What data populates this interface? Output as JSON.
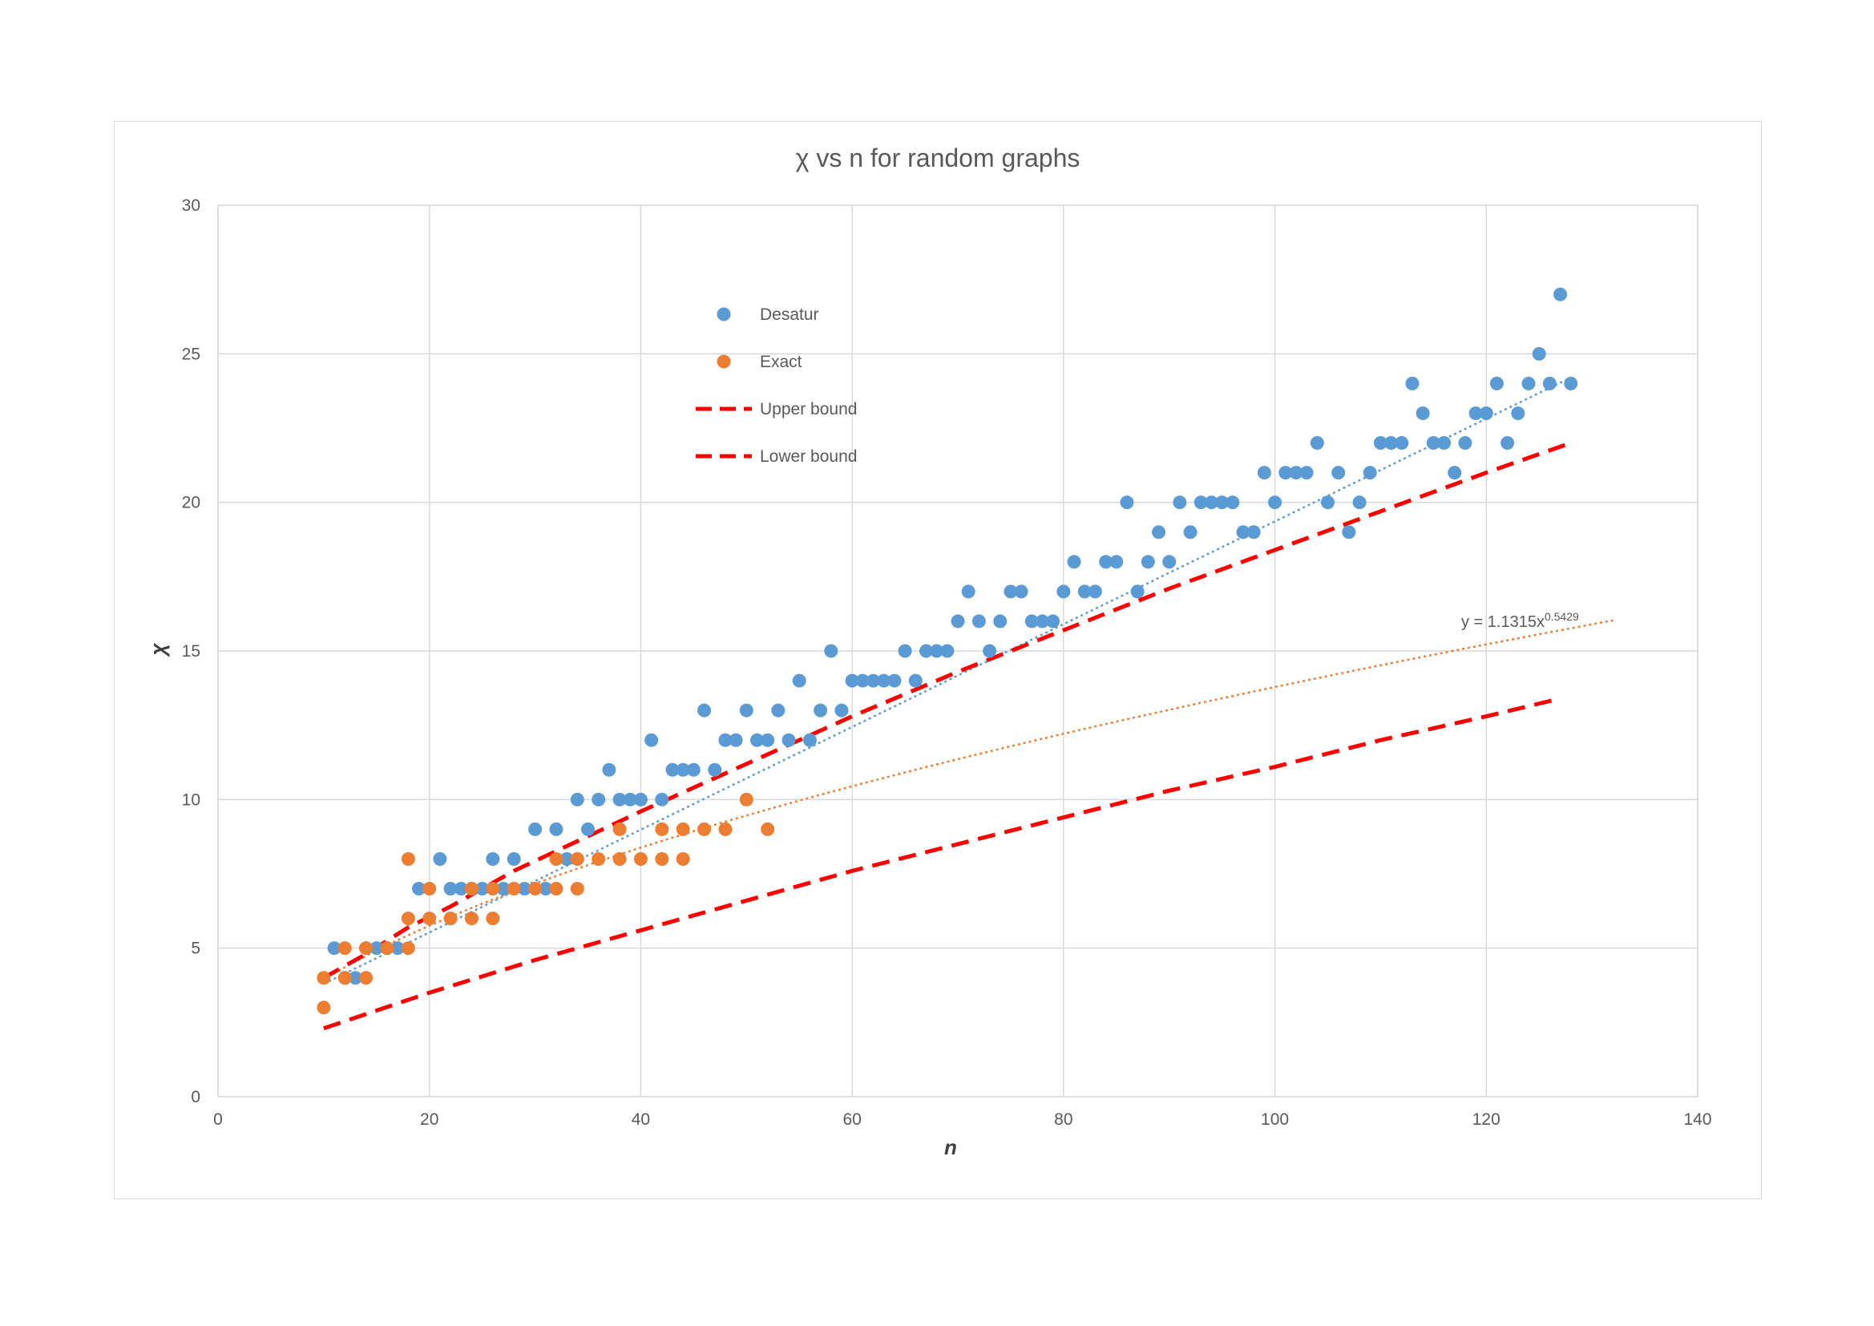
{
  "chart_data": {
    "type": "scatter",
    "title": "χ vs n for random graphs",
    "xlabel": "n",
    "ylabel": "χ",
    "xlim": [
      0,
      140
    ],
    "ylim": [
      0,
      30
    ],
    "x_ticks": [
      0,
      20,
      40,
      60,
      80,
      100,
      120,
      140
    ],
    "y_ticks": [
      0,
      5,
      10,
      15,
      20,
      25,
      30
    ],
    "grid": true,
    "legend_position": "top-center",
    "series": [
      {
        "name": "Desatur",
        "kind": "scatter",
        "color": "#5b9bd5",
        "points": [
          [
            11,
            5
          ],
          [
            12,
            4
          ],
          [
            13,
            4
          ],
          [
            14,
            5
          ],
          [
            15,
            5
          ],
          [
            16,
            5
          ],
          [
            17,
            5
          ],
          [
            19,
            7
          ],
          [
            21,
            8
          ],
          [
            22,
            7
          ],
          [
            23,
            7
          ],
          [
            24,
            7
          ],
          [
            25,
            7
          ],
          [
            26,
            8
          ],
          [
            27,
            7
          ],
          [
            28,
            8
          ],
          [
            29,
            7
          ],
          [
            30,
            9
          ],
          [
            31,
            7
          ],
          [
            32,
            9
          ],
          [
            33,
            8
          ],
          [
            34,
            10
          ],
          [
            35,
            9
          ],
          [
            36,
            10
          ],
          [
            37,
            11
          ],
          [
            38,
            10
          ],
          [
            39,
            10
          ],
          [
            40,
            10
          ],
          [
            41,
            12
          ],
          [
            42,
            10
          ],
          [
            43,
            11
          ],
          [
            44,
            11
          ],
          [
            45,
            11
          ],
          [
            46,
            13
          ],
          [
            47,
            11
          ],
          [
            48,
            12
          ],
          [
            49,
            12
          ],
          [
            50,
            13
          ],
          [
            51,
            12
          ],
          [
            52,
            12
          ],
          [
            53,
            13
          ],
          [
            54,
            12
          ],
          [
            55,
            14
          ],
          [
            56,
            12
          ],
          [
            57,
            13
          ],
          [
            58,
            15
          ],
          [
            59,
            13
          ],
          [
            60,
            14
          ],
          [
            61,
            14
          ],
          [
            62,
            14
          ],
          [
            63,
            14
          ],
          [
            64,
            14
          ],
          [
            65,
            15
          ],
          [
            66,
            14
          ],
          [
            67,
            15
          ],
          [
            68,
            15
          ],
          [
            69,
            15
          ],
          [
            70,
            16
          ],
          [
            71,
            17
          ],
          [
            72,
            16
          ],
          [
            73,
            15
          ],
          [
            74,
            16
          ],
          [
            75,
            17
          ],
          [
            76,
            17
          ],
          [
            77,
            16
          ],
          [
            78,
            16
          ],
          [
            79,
            16
          ],
          [
            80,
            17
          ],
          [
            81,
            18
          ],
          [
            82,
            17
          ],
          [
            83,
            17
          ],
          [
            84,
            18
          ],
          [
            85,
            18
          ],
          [
            86,
            20
          ],
          [
            87,
            17
          ],
          [
            88,
            18
          ],
          [
            89,
            19
          ],
          [
            90,
            18
          ],
          [
            91,
            20
          ],
          [
            92,
            19
          ],
          [
            93,
            20
          ],
          [
            94,
            20
          ],
          [
            95,
            20
          ],
          [
            96,
            20
          ],
          [
            97,
            19
          ],
          [
            98,
            19
          ],
          [
            99,
            21
          ],
          [
            100,
            20
          ],
          [
            101,
            21
          ],
          [
            102,
            21
          ],
          [
            103,
            21
          ],
          [
            104,
            22
          ],
          [
            105,
            20
          ],
          [
            106,
            21
          ],
          [
            107,
            19
          ],
          [
            108,
            20
          ],
          [
            109,
            21
          ],
          [
            110,
            22
          ],
          [
            111,
            22
          ],
          [
            112,
            22
          ],
          [
            113,
            24
          ],
          [
            114,
            23
          ],
          [
            115,
            22
          ],
          [
            116,
            22
          ],
          [
            117,
            21
          ],
          [
            118,
            22
          ],
          [
            119,
            23
          ],
          [
            120,
            23
          ],
          [
            121,
            24
          ],
          [
            122,
            22
          ],
          [
            123,
            23
          ],
          [
            124,
            24
          ],
          [
            125,
            25
          ],
          [
            126,
            24
          ],
          [
            127,
            27
          ],
          [
            128,
            24
          ]
        ]
      },
      {
        "name": "Exact",
        "kind": "scatter",
        "color": "#ed7d31",
        "points": [
          [
            10,
            3
          ],
          [
            10,
            4
          ],
          [
            12,
            4
          ],
          [
            12,
            5
          ],
          [
            14,
            4
          ],
          [
            14,
            5
          ],
          [
            16,
            5
          ],
          [
            18,
            5
          ],
          [
            18,
            6
          ],
          [
            18,
            8
          ],
          [
            20,
            6
          ],
          [
            20,
            7
          ],
          [
            22,
            6
          ],
          [
            24,
            6
          ],
          [
            24,
            7
          ],
          [
            26,
            6
          ],
          [
            26,
            7
          ],
          [
            28,
            7
          ],
          [
            30,
            7
          ],
          [
            32,
            7
          ],
          [
            32,
            8
          ],
          [
            34,
            7
          ],
          [
            34,
            8
          ],
          [
            36,
            8
          ],
          [
            38,
            8
          ],
          [
            38,
            9
          ],
          [
            40,
            8
          ],
          [
            42,
            8
          ],
          [
            42,
            9
          ],
          [
            44,
            8
          ],
          [
            44,
            9
          ],
          [
            46,
            9
          ],
          [
            48,
            9
          ],
          [
            50,
            10
          ],
          [
            52,
            9
          ]
        ]
      },
      {
        "name": "Upper bound",
        "kind": "dashed-line",
        "color": "#ff0000",
        "points": [
          [
            10,
            4
          ],
          [
            14,
            4.8
          ],
          [
            18,
            5.7
          ],
          [
            22,
            6.4
          ],
          [
            28,
            7.6
          ],
          [
            34,
            8.6
          ],
          [
            40,
            9.6
          ],
          [
            50,
            11.2
          ],
          [
            60,
            12.8
          ],
          [
            70,
            14.3
          ],
          [
            80,
            15.7
          ],
          [
            90,
            17.1
          ],
          [
            100,
            18.4
          ],
          [
            110,
            19.7
          ],
          [
            120,
            21.0
          ],
          [
            128,
            22.0
          ]
        ]
      },
      {
        "name": "Lower bound",
        "kind": "dashed-line",
        "color": "#ff0000",
        "points": [
          [
            10,
            2.3
          ],
          [
            20,
            3.5
          ],
          [
            30,
            4.6
          ],
          [
            40,
            5.6
          ],
          [
            50,
            6.6
          ],
          [
            60,
            7.6
          ],
          [
            70,
            8.5
          ],
          [
            80,
            9.4
          ],
          [
            90,
            10.3
          ],
          [
            100,
            11.1
          ],
          [
            110,
            12.0
          ],
          [
            120,
            12.8
          ],
          [
            127,
            13.4
          ]
        ]
      }
    ],
    "trendlines": [
      {
        "series": "Desatur",
        "kind": "linear-dotted",
        "color": "#5b9bd5",
        "x_range": [
          10,
          128
        ],
        "y_start": 3.8,
        "y_end": 24.2
      },
      {
        "series": "Exact",
        "kind": "power-dotted",
        "color": "#ed7d31",
        "coefficient": 1.1315,
        "exponent": 0.5429,
        "x_range": [
          10,
          132
        ],
        "equation_base": "y = 1.1315x",
        "equation_exponent": "0.5429"
      }
    ]
  }
}
